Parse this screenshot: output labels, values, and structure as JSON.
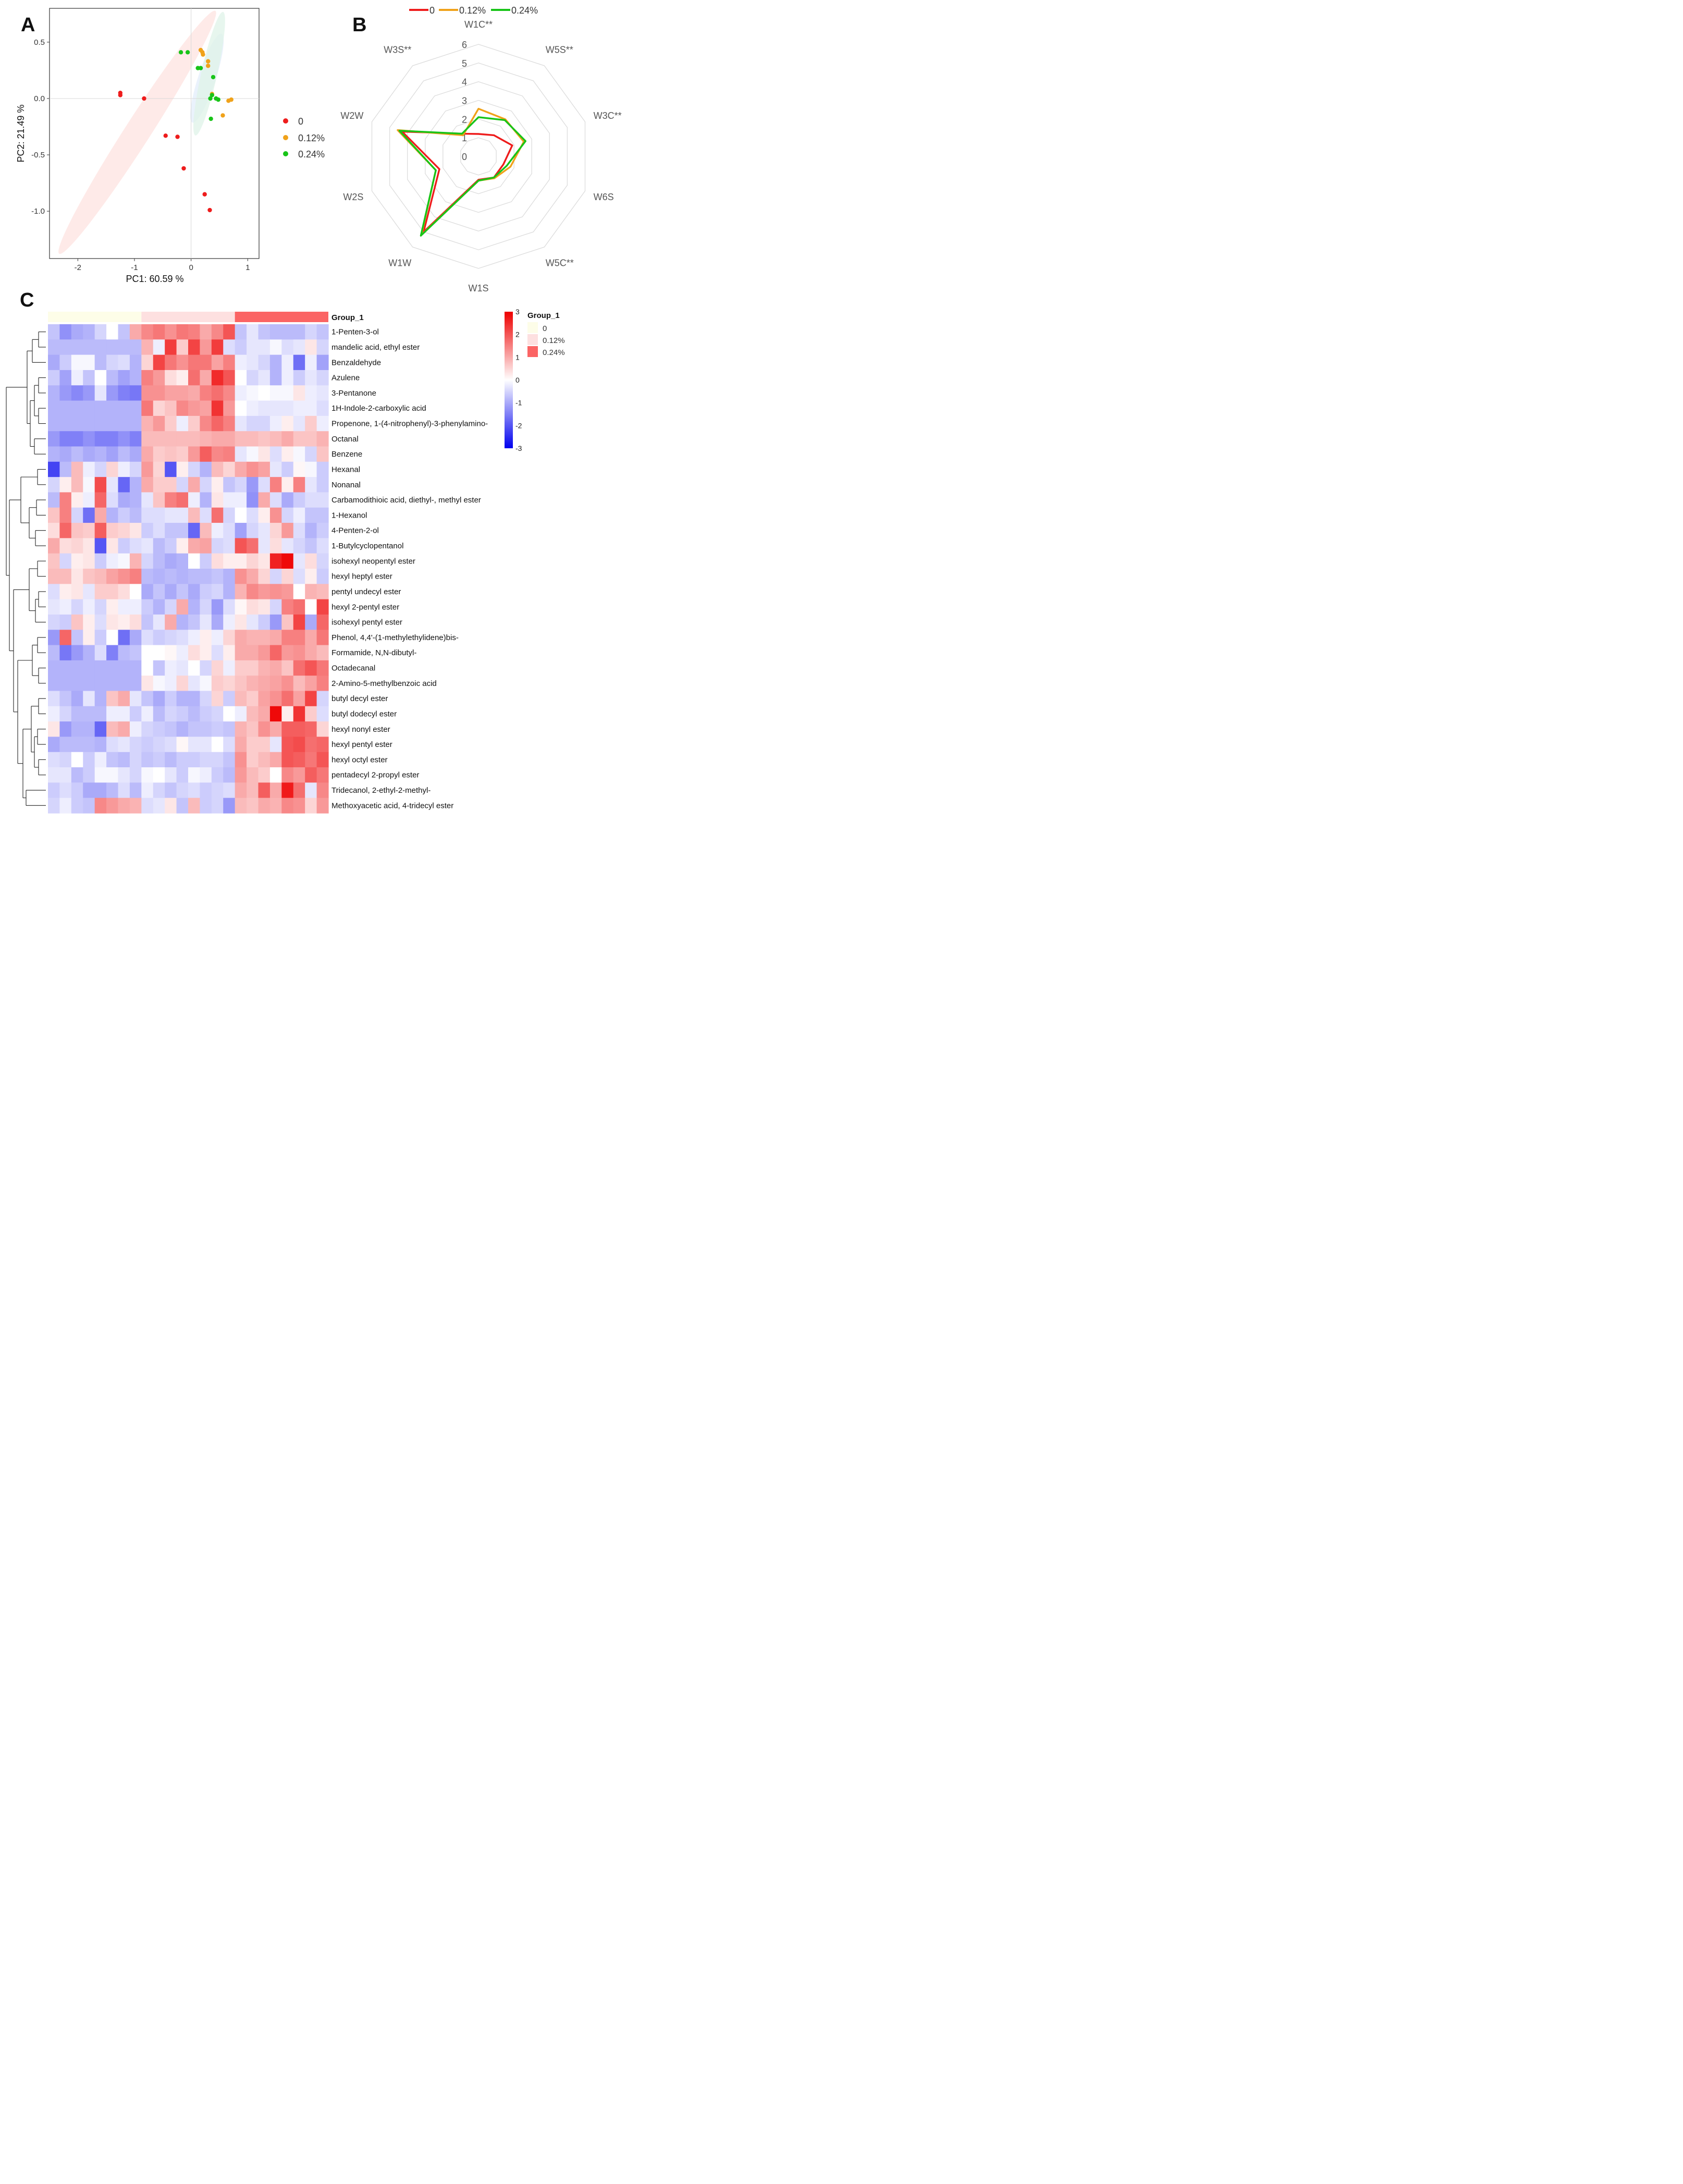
{
  "panel_labels": [
    "A",
    "B",
    "C"
  ],
  "colors": {
    "g0": "#ee1c1c",
    "g012": "#f0a21a",
    "g024": "#18c418",
    "heat_low": "#0000ee",
    "heat_mid": "#ffffff",
    "heat_high": "#ee0000",
    "group_0": "#fdfde8",
    "group_012": "#fde0e0",
    "group_024": "#fb6464"
  },
  "chart_data": [
    {
      "type": "scatter",
      "panel": "A",
      "xlabel": "PC1: 60.59 %",
      "ylabel": "PC2: 21.49 %",
      "xlim": [
        -2.5,
        1.2
      ],
      "ylim": [
        -1.42,
        0.8
      ],
      "xticks": [
        -2,
        -1,
        0,
        1
      ],
      "xtick_labels": [
        "-2",
        "-1",
        "0",
        "1"
      ],
      "yticks": [
        0.5,
        0.0,
        -0.5,
        -1.0
      ],
      "ytick_labels": [
        "0.5",
        "0.0",
        "-0.5",
        "-1.0"
      ],
      "legend_position": "right",
      "series": [
        {
          "name": "0",
          "color": "#ee1c1c",
          "ellipse": {
            "cx": -0.95,
            "cy": -0.3,
            "rx": 1.75,
            "ry": 0.16,
            "angle_deg": 38,
            "fill": "#fde3e0"
          },
          "points": [
            [
              -1.25,
              0.03
            ],
            [
              -1.25,
              0.05
            ],
            [
              -0.83,
              0.0
            ],
            [
              -0.45,
              -0.33
            ],
            [
              -0.24,
              -0.34
            ],
            [
              -0.13,
              -0.62
            ],
            [
              0.24,
              -0.85
            ],
            [
              0.33,
              -0.99
            ]
          ]
        },
        {
          "name": "0.12%",
          "color": "#f0a21a",
          "ellipse": {
            "cx": 0.28,
            "cy": 0.18,
            "rx": 0.47,
            "ry": 0.11,
            "angle_deg": 57,
            "fill": "#e3eefb"
          },
          "points": [
            [
              0.17,
              0.43
            ],
            [
              0.2,
              0.41
            ],
            [
              0.21,
              0.39
            ],
            [
              0.3,
              0.33
            ],
            [
              0.3,
              0.29
            ],
            [
              0.37,
              0.04
            ],
            [
              0.66,
              -0.02
            ],
            [
              0.71,
              -0.01
            ],
            [
              0.56,
              -0.15
            ]
          ]
        },
        {
          "name": "0.24%",
          "color": "#18c418",
          "ellipse": {
            "cx": 0.32,
            "cy": 0.22,
            "rx": 0.6,
            "ry": 0.1,
            "angle_deg": 66,
            "fill": "#dff3e8"
          },
          "points": [
            [
              -0.18,
              0.41
            ],
            [
              -0.06,
              0.41
            ],
            [
              0.12,
              0.27
            ],
            [
              0.17,
              0.27
            ],
            [
              0.39,
              0.19
            ],
            [
              0.37,
              0.03
            ],
            [
              0.44,
              0.0
            ],
            [
              0.34,
              0.0
            ],
            [
              0.48,
              -0.01
            ],
            [
              0.35,
              -0.18
            ]
          ]
        }
      ]
    },
    {
      "type": "radar",
      "panel": "B",
      "axes": [
        "W1C**",
        "W5S**",
        "W3C**",
        "W6S",
        "W5C**",
        "W1S",
        "W1W",
        "W2S",
        "W2W",
        "W3S**"
      ],
      "rmax": 6,
      "ticks": [
        0,
        1,
        2,
        3,
        4,
        5,
        6
      ],
      "legend_position": "top",
      "series": [
        {
          "name": "0",
          "color": "#ee1c1c",
          "values": [
            1.2,
            1.4,
            1.9,
            1.4,
            1.4,
            1.25,
            5.0,
            2.2,
            4.3,
            1.5
          ]
        },
        {
          "name": "0.12%",
          "color": "#f0a21a",
          "values": [
            2.55,
            2.45,
            2.55,
            1.8,
            1.45,
            1.3,
            5.2,
            2.4,
            4.55,
            1.4
          ]
        },
        {
          "name": "0.24%",
          "color": "#18c418",
          "values": [
            2.1,
            2.4,
            2.65,
            1.6,
            1.4,
            1.3,
            5.25,
            2.4,
            4.45,
            1.5
          ]
        }
      ]
    },
    {
      "type": "heatmap",
      "panel": "C",
      "group_header": "Group_1",
      "legend_title": "Group_1",
      "colorbar_range": [
        -3,
        3
      ],
      "colorbar_ticks": [
        "3",
        "2",
        "1",
        "0",
        "-1",
        "-2",
        "-3"
      ],
      "groups": [
        {
          "name": "0",
          "count": 8
        },
        {
          "name": "0.12%",
          "count": 8
        },
        {
          "name": "0.24%",
          "count": 8
        }
      ],
      "rows": [
        "1-Penten-3-ol",
        "mandelic acid, ethyl ester",
        "Benzaldehyde",
        "Azulene",
        "3-Pentanone",
        "1H-Indole-2-carboxylic acid",
        "Propenone, 1-(4-nitrophenyl)-3-phenylamino-",
        "Octanal",
        "Benzene",
        "Hexanal",
        "Nonanal",
        "Carbamodithioic acid, diethyl-, methyl ester",
        "1-Hexanol",
        "4-Penten-2-ol",
        "1-Butylcyclopentanol",
        "isohexyl neopentyl ester",
        "hexyl heptyl ester",
        "pentyl undecyl ester",
        "hexyl 2-pentyl ester",
        "isohexyl pentyl ester",
        "Phenol, 4,4'-(1-methylethylidene)bis-",
        "Formamide, N,N-dibutyl-",
        "Octadecanal",
        "2-Amino-5-methylbenzoic acid",
        "butyl decyl ester",
        "butyl dodecyl ester",
        "hexyl nonyl ester",
        "hexyl pentyl ester",
        "hexyl octyl ester",
        "pentadecyl 2-propyl ester",
        "Tridecanol, 2-ethyl-2-methyl-",
        "Methoxyacetic acid, 4-tridecyl ester"
      ],
      "values": [
        [
          -0.7,
          -1.3,
          -1.0,
          -0.9,
          -0.5,
          0.0,
          -0.7,
          1.0,
          1.4,
          1.6,
          1.3,
          1.6,
          1.5,
          1.0,
          1.4,
          2.0,
          -0.7,
          -0.3,
          -0.7,
          -0.8,
          -0.8,
          -0.8,
          -0.5,
          -0.7
        ],
        [
          -0.8,
          -0.8,
          -0.8,
          -0.8,
          -0.8,
          -0.8,
          -0.8,
          -0.8,
          0.9,
          -0.2,
          2.3,
          0.6,
          2.2,
          1.2,
          2.3,
          -0.4,
          -0.6,
          -0.3,
          -0.3,
          -0.1,
          -0.4,
          -0.3,
          0.3,
          -0.5
        ],
        [
          -1.0,
          -0.6,
          -0.1,
          -0.1,
          -0.8,
          -0.5,
          -0.4,
          -0.9,
          0.5,
          2.2,
          1.6,
          1.3,
          1.6,
          1.6,
          1.1,
          1.5,
          -0.2,
          -0.3,
          -0.5,
          -0.9,
          -0.2,
          -1.7,
          -0.2,
          -1.1
        ],
        [
          -0.6,
          -1.1,
          -0.2,
          -0.7,
          0.0,
          -0.8,
          -1.1,
          -0.9,
          1.5,
          1.2,
          0.4,
          0.2,
          1.7,
          1.0,
          2.5,
          2.0,
          0.0,
          -0.5,
          -0.3,
          -0.9,
          -0.2,
          -0.6,
          -0.3,
          -0.5
        ],
        [
          -0.9,
          -1.2,
          -1.4,
          -1.2,
          -0.3,
          -1.2,
          -1.5,
          -1.6,
          1.3,
          1.3,
          1.1,
          1.1,
          1.0,
          1.5,
          1.7,
          1.4,
          -0.2,
          -0.1,
          0.0,
          -0.1,
          -0.1,
          0.3,
          -0.2,
          -0.3
        ],
        [
          -0.9,
          -0.9,
          -0.9,
          -0.9,
          -0.9,
          -0.9,
          -0.9,
          -0.9,
          1.6,
          0.5,
          0.7,
          1.4,
          1.2,
          1.1,
          2.4,
          1.2,
          0.0,
          -0.2,
          -0.3,
          -0.3,
          -0.3,
          -0.2,
          -0.2,
          -0.4
        ],
        [
          -0.9,
          -0.9,
          -0.9,
          -0.9,
          -0.9,
          -0.9,
          -0.9,
          -0.9,
          0.9,
          1.2,
          0.6,
          -0.2,
          0.6,
          1.4,
          1.8,
          1.5,
          -0.3,
          -0.5,
          -0.5,
          -0.2,
          0.2,
          -0.3,
          0.6,
          -0.2
        ],
        [
          -1.2,
          -1.5,
          -1.5,
          -1.3,
          -1.5,
          -1.5,
          -1.3,
          -1.5,
          0.8,
          0.8,
          0.8,
          0.8,
          0.8,
          0.9,
          1.0,
          1.0,
          0.8,
          0.8,
          0.7,
          0.8,
          1.0,
          0.7,
          0.7,
          0.9
        ],
        [
          -0.9,
          -1.0,
          -0.8,
          -1.0,
          -0.9,
          -1.1,
          -0.8,
          -1.0,
          1.0,
          0.6,
          0.7,
          0.6,
          1.2,
          1.9,
          1.4,
          1.5,
          -0.3,
          -0.1,
          0.3,
          -0.4,
          0.2,
          -0.1,
          -0.5,
          0.7
        ],
        [
          -2.2,
          -0.8,
          0.8,
          -0.2,
          -0.5,
          0.5,
          -0.2,
          -0.5,
          1.2,
          0.5,
          -2.0,
          0.2,
          -0.5,
          -0.9,
          0.8,
          0.5,
          1.0,
          1.3,
          1.1,
          -0.3,
          -0.6,
          0.1,
          -0.1,
          -0.6
        ],
        [
          -0.5,
          0.2,
          0.8,
          -0.1,
          2.1,
          -0.3,
          -1.8,
          -0.9,
          1.0,
          0.6,
          0.6,
          -0.5,
          1.0,
          -0.5,
          0.2,
          -0.7,
          -0.5,
          -1.2,
          -0.4,
          1.5,
          0.2,
          1.5,
          -0.3,
          -0.6
        ],
        [
          -0.8,
          1.5,
          0.2,
          -0.2,
          1.8,
          -0.4,
          -1.0,
          -0.9,
          -0.3,
          0.7,
          1.5,
          1.7,
          -0.2,
          -0.9,
          0.3,
          -0.2,
          -0.2,
          -1.3,
          1.0,
          -0.4,
          -1.0,
          -0.6,
          -0.4,
          -0.4
        ],
        [
          0.7,
          1.5,
          -0.5,
          -1.7,
          1.0,
          -0.9,
          -0.6,
          -0.8,
          -0.4,
          -0.4,
          -0.3,
          -0.3,
          0.8,
          -0.4,
          1.7,
          -0.5,
          0.0,
          -0.4,
          0.2,
          1.3,
          -0.5,
          -0.2,
          -0.7,
          -0.7
        ],
        [
          0.4,
          1.8,
          0.7,
          0.6,
          1.9,
          0.6,
          0.5,
          0.3,
          -0.6,
          -0.4,
          -0.7,
          -0.7,
          -1.8,
          0.8,
          -0.2,
          -0.4,
          -1.1,
          -0.5,
          -0.3,
          0.5,
          1.2,
          -0.4,
          -0.9,
          -0.6
        ],
        [
          1.0,
          0.4,
          0.5,
          0.3,
          -2.0,
          0.3,
          -0.6,
          -0.4,
          -0.3,
          -0.8,
          -0.6,
          0.2,
          1.0,
          1.1,
          -0.5,
          -0.4,
          2.0,
          1.7,
          -0.3,
          0.4,
          -0.3,
          -0.5,
          -0.7,
          -0.4
        ],
        [
          0.7,
          -0.5,
          0.2,
          0.3,
          -0.6,
          -0.2,
          -0.1,
          0.9,
          -0.5,
          -0.8,
          -1.0,
          -0.9,
          0.0,
          -0.6,
          0.4,
          0.2,
          0.2,
          0.5,
          0.3,
          2.6,
          2.9,
          -0.3,
          0.4,
          -0.5
        ],
        [
          0.8,
          0.8,
          0.3,
          0.7,
          0.8,
          1.1,
          1.3,
          1.5,
          -0.8,
          -0.9,
          -0.8,
          -0.9,
          -0.8,
          -0.8,
          -0.7,
          -0.9,
          1.3,
          1.0,
          0.5,
          -0.5,
          0.5,
          -0.4,
          0.2,
          -0.6
        ],
        [
          -0.4,
          0.2,
          0.3,
          -0.3,
          0.6,
          0.6,
          0.4,
          0.0,
          -1.0,
          -0.7,
          -1.0,
          -0.7,
          -1.0,
          -0.6,
          -0.5,
          -0.9,
          0.9,
          1.4,
          1.2,
          1.3,
          1.2,
          0.0,
          0.9,
          0.8
        ],
        [
          -0.3,
          -0.2,
          -0.5,
          -0.2,
          -0.5,
          0.2,
          -0.2,
          -0.2,
          -0.6,
          -0.9,
          -0.5,
          1.0,
          -0.9,
          -0.5,
          -1.2,
          -0.4,
          0.1,
          0.4,
          0.3,
          -0.5,
          1.5,
          1.7,
          0.0,
          2.2
        ],
        [
          -0.5,
          -0.6,
          0.7,
          0.2,
          -0.4,
          0.3,
          0.2,
          0.4,
          -0.7,
          -0.3,
          1.0,
          -0.9,
          -0.7,
          -0.3,
          -1.0,
          -0.2,
          0.3,
          -0.3,
          -0.6,
          -1.2,
          0.7,
          2.2,
          -1.0,
          1.8
        ],
        [
          -1.2,
          1.8,
          -0.7,
          0.2,
          -0.6,
          0.0,
          -1.7,
          -1.0,
          -0.4,
          -0.6,
          -0.5,
          -0.4,
          -0.2,
          0.2,
          -0.2,
          0.5,
          1.0,
          0.9,
          0.9,
          1.0,
          1.5,
          1.5,
          1.0,
          1.6
        ],
        [
          -0.8,
          -1.6,
          -1.2,
          -0.9,
          -0.4,
          -1.5,
          -0.8,
          -0.7,
          0.0,
          0.0,
          0.1,
          -0.2,
          0.4,
          0.2,
          -0.4,
          0.2,
          1.0,
          1.0,
          1.2,
          1.8,
          1.2,
          1.3,
          1.0,
          0.8
        ],
        [
          -0.9,
          -0.9,
          -0.9,
          -0.9,
          -0.9,
          -0.9,
          -0.9,
          -0.9,
          0.0,
          -0.7,
          -0.2,
          -0.3,
          0.0,
          -0.5,
          0.5,
          -0.2,
          0.6,
          0.6,
          0.9,
          1.0,
          0.7,
          1.7,
          2.0,
          1.6
        ],
        [
          -0.9,
          -0.9,
          -0.9,
          -0.9,
          -0.9,
          -0.9,
          -0.9,
          -0.9,
          0.3,
          -0.1,
          -0.2,
          0.5,
          -0.3,
          -0.1,
          0.6,
          0.5,
          0.7,
          0.9,
          1.0,
          1.1,
          1.3,
          0.8,
          1.1,
          1.5
        ],
        [
          -0.4,
          -0.7,
          -1.0,
          -0.3,
          -0.9,
          0.7,
          1.0,
          -0.3,
          -0.7,
          -1.0,
          -0.6,
          -0.9,
          -0.9,
          -0.5,
          0.5,
          -0.6,
          0.8,
          0.6,
          1.1,
          1.3,
          1.7,
          1.1,
          2.2,
          -0.5
        ],
        [
          -0.2,
          -0.5,
          -0.8,
          -0.8,
          -0.8,
          -0.2,
          -0.2,
          -0.6,
          -0.2,
          -0.8,
          -0.5,
          -0.6,
          -0.8,
          -0.6,
          -0.5,
          0.0,
          -0.2,
          0.8,
          1.0,
          2.9,
          0.2,
          2.4,
          0.6,
          -0.4
        ],
        [
          0.3,
          -1.2,
          -0.9,
          -0.9,
          -1.8,
          0.8,
          1.0,
          -0.2,
          -0.5,
          -0.6,
          -0.7,
          -0.9,
          -0.7,
          -0.7,
          -0.6,
          -0.7,
          0.9,
          0.7,
          1.3,
          1.0,
          1.9,
          1.9,
          1.8,
          0.5
        ],
        [
          -1.0,
          -0.8,
          -0.8,
          -0.8,
          -0.9,
          -0.4,
          -0.3,
          -0.5,
          -0.6,
          -0.5,
          -0.4,
          0.1,
          -0.3,
          -0.3,
          0.0,
          -0.4,
          1.0,
          0.6,
          0.6,
          -0.3,
          2.0,
          2.1,
          1.7,
          1.8
        ],
        [
          -0.4,
          -0.5,
          0.0,
          -0.6,
          -0.2,
          -0.7,
          -0.8,
          -0.5,
          -0.7,
          -0.6,
          -0.8,
          -0.6,
          -0.6,
          -0.5,
          -0.5,
          -0.7,
          1.3,
          0.6,
          0.8,
          1.0,
          2.0,
          1.9,
          1.6,
          2.0
        ],
        [
          -0.3,
          -0.3,
          -0.8,
          -0.6,
          -0.1,
          -0.1,
          -0.3,
          -0.5,
          -0.1,
          0.0,
          -0.3,
          -0.6,
          -0.1,
          -0.2,
          -0.6,
          -0.8,
          1.2,
          0.8,
          0.6,
          0.0,
          1.4,
          1.2,
          1.9,
          1.6
        ],
        [
          -0.6,
          -0.4,
          -0.6,
          -1.0,
          -1.0,
          -0.8,
          -0.4,
          -0.8,
          -0.2,
          -0.5,
          -0.7,
          -0.5,
          -0.4,
          -0.6,
          -0.5,
          -0.4,
          1.0,
          0.8,
          1.9,
          1.0,
          2.7,
          1.7,
          -0.3,
          1.4
        ],
        [
          -0.5,
          -0.2,
          -0.6,
          -0.7,
          1.4,
          1.2,
          1.0,
          0.9,
          -0.4,
          -0.3,
          0.3,
          -0.7,
          0.8,
          -0.6,
          -0.5,
          -1.2,
          0.8,
          0.7,
          1.0,
          0.9,
          1.4,
          1.3,
          0.5,
          1.2
        ]
      ]
    }
  ]
}
